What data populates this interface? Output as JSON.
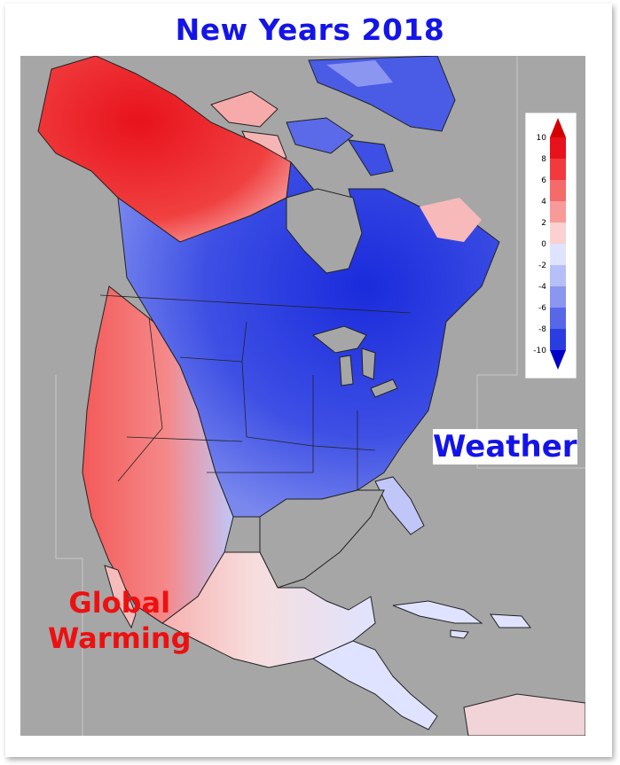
{
  "title": "New Years 2018",
  "labels": {
    "weather": "Weather",
    "global_warming_line1": "Global",
    "global_warming_line2": "Warming"
  },
  "legend": {
    "ticks": [
      "10",
      "8",
      "6",
      "4",
      "2",
      "0",
      "-2",
      "-4",
      "-6",
      "-8",
      "-10"
    ],
    "colors": [
      "#e8121c",
      "#f03a3e",
      "#f56a6a",
      "#f89a9a",
      "#fbd0d0",
      "#dfe3ff",
      "#b7bff8",
      "#8a96f0",
      "#5767e8",
      "#2a3ee0"
    ],
    "max_color": "#d40000",
    "min_color": "#0000c8"
  },
  "colors": {
    "title": "#1414e8",
    "weather": "#1414e8",
    "global_warming": "#ee1010",
    "ocean": "#a6a6a6",
    "land_outline": "#222222"
  }
}
